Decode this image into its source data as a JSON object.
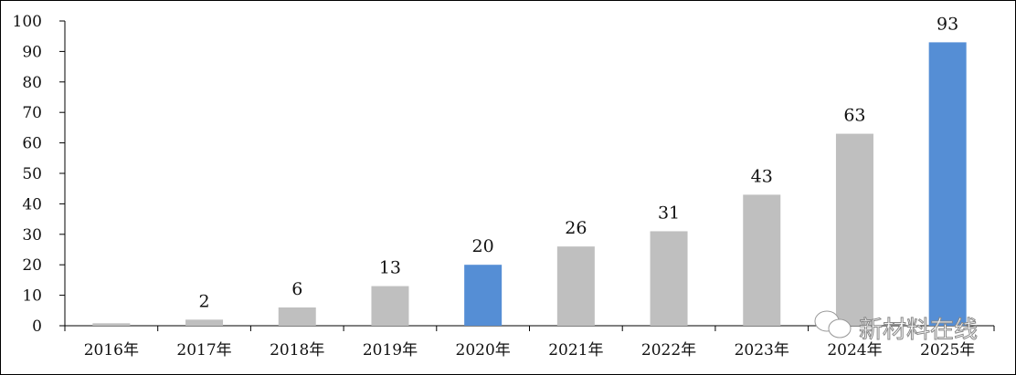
{
  "chart_data": {
    "type": "bar",
    "categories": [
      "2016年",
      "2017年",
      "2018年",
      "2019年",
      "2020年",
      "2021年",
      "2022年",
      "2023年",
      "2024年",
      "2025年"
    ],
    "values": [
      0.8,
      2,
      6,
      13,
      20,
      26,
      31,
      43,
      63,
      93
    ],
    "data_labels": [
      "",
      "2",
      "6",
      "13",
      "20",
      "26",
      "31",
      "43",
      "63",
      "93"
    ],
    "highlighted": [
      false,
      false,
      false,
      false,
      true,
      false,
      false,
      false,
      false,
      true
    ],
    "ylim": [
      0,
      100
    ],
    "yticks": [
      0,
      10,
      20,
      30,
      40,
      50,
      60,
      70,
      80,
      90,
      100
    ],
    "grid": false,
    "legend": "none",
    "title": "",
    "xlabel": "",
    "ylabel": "",
    "colors": {
      "default": "#bfbfbf",
      "highlight": "#558ed5"
    }
  },
  "watermark": {
    "text": "新材料在线",
    "icon": "wechat-icon"
  }
}
